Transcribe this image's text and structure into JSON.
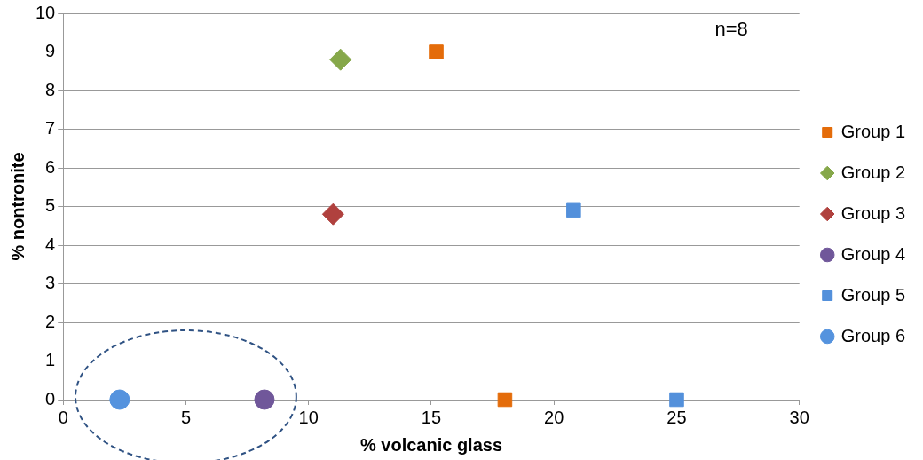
{
  "chart_data": {
    "type": "scatter",
    "xlabel": "% volcanic glass",
    "ylabel": "% nontronite",
    "xlim": [
      0,
      30
    ],
    "xticks": [
      0,
      5,
      10,
      15,
      20,
      25,
      30
    ],
    "ylim": [
      0,
      10
    ],
    "yticks": [
      0,
      1,
      2,
      3,
      4,
      5,
      6,
      7,
      8,
      9,
      10
    ],
    "grid": "y",
    "legend": "right",
    "annotations": [
      "n=8"
    ],
    "series": [
      {
        "name": "Group 1",
        "color": "#e46c0a",
        "marker": "square",
        "x": [
          15.2,
          18
        ],
        "values": [
          9,
          0
        ]
      },
      {
        "name": "Group 2",
        "color": "#86a84a",
        "marker": "diamond",
        "x": [
          11.3
        ],
        "values": [
          8.8
        ]
      },
      {
        "name": "Group 3",
        "color": "#b0413e",
        "marker": "diamond",
        "x": [
          11
        ],
        "values": [
          4.8
        ]
      },
      {
        "name": "Group 4",
        "color": "#70579a",
        "marker": "circle",
        "x": [
          8.2
        ],
        "values": [
          0
        ]
      },
      {
        "name": "Group 5",
        "color": "#5390db",
        "marker": "square",
        "x": [
          20.8,
          25
        ],
        "values": [
          4.9,
          0
        ]
      },
      {
        "name": "Group 6",
        "color": "#5593de",
        "marker": "circle",
        "x": [
          2.3
        ],
        "values": [
          0
        ]
      }
    ]
  }
}
